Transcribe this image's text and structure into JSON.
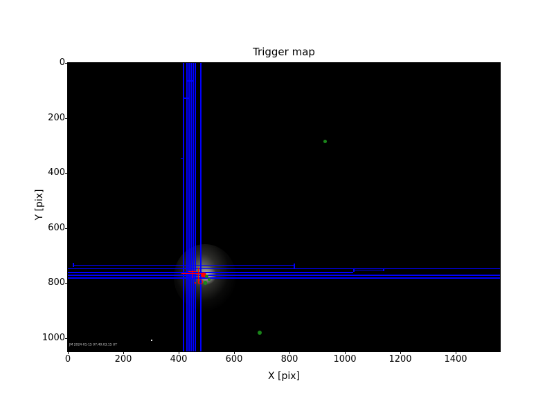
{
  "chart_data": {
    "type": "scatter",
    "title": "Trigger map",
    "xlabel": "X [pix]",
    "ylabel": "Y [pix]",
    "xlim": [
      0,
      1560
    ],
    "ylim": [
      1049,
      0
    ],
    "y_axis_inverted": true,
    "grid": false,
    "legend": null,
    "x_ticks": [
      0,
      200,
      400,
      600,
      800,
      1000,
      1200,
      1400
    ],
    "y_ticks": [
      0,
      200,
      400,
      600,
      800,
      1000
    ],
    "plot_background": "#000000",
    "figure_background": "#ffffff",
    "colors": {
      "trigger_box": "#0000ff",
      "crosshair": "#ff0000",
      "detection_dot": "#ff0000",
      "star_dot": "#1a851a",
      "watermark": "#cfcfcf"
    },
    "trigger_boxes": {
      "vertical_lines": [
        {
          "x": 415,
          "y1": 0,
          "y2": 1049
        },
        {
          "x": 428,
          "y1": 0,
          "y2": 1049
        },
        {
          "x": 435,
          "y1": 0,
          "y2": 1049
        },
        {
          "x": 443,
          "y1": 0,
          "y2": 1049
        },
        {
          "x": 450,
          "y1": 0,
          "y2": 1049
        },
        {
          "x": 458,
          "y1": 0,
          "y2": 1049
        },
        {
          "x": 478,
          "y1": 0,
          "y2": 1049
        }
      ],
      "horizontal_lines": [
        {
          "y": 734,
          "x1": 18,
          "x2": 815
        },
        {
          "y": 747,
          "x1": 0,
          "x2": 1560
        },
        {
          "y": 752,
          "x1": 1030,
          "x2": 1138
        },
        {
          "y": 760,
          "x1": 0,
          "x2": 1030
        },
        {
          "y": 770,
          "x1": 0,
          "x2": 1560
        },
        {
          "y": 780,
          "x1": 0,
          "x2": 1560
        }
      ],
      "connector_segments_h": [
        {
          "y": 63,
          "x1": 428,
          "x2": 451
        },
        {
          "y": 126,
          "x1": 415,
          "x2": 436
        },
        {
          "y": 347,
          "x1": 408,
          "x2": 419
        }
      ],
      "connector_segments_v": [
        {
          "x": 18,
          "y1": 727,
          "y2": 741
        },
        {
          "x": 815,
          "y1": 730,
          "y2": 747
        },
        {
          "x": 1030,
          "y1": 747,
          "y2": 760
        },
        {
          "x": 1138,
          "y1": 747,
          "y2": 757
        }
      ]
    },
    "crosshairs": [
      {
        "h": {
          "y": 765,
          "x1": 410,
          "x2": 493
        },
        "v": {
          "x": 470,
          "y1": 745,
          "y2": 803
        }
      },
      {
        "h": {
          "y": 757,
          "x1": 435,
          "x2": 462
        },
        "v": {
          "x": 448,
          "y1": 752,
          "y2": 782
        }
      }
    ],
    "detections": {
      "red_dots": [
        {
          "x": 490,
          "y": 772,
          "d": 18
        }
      ],
      "red_rings": [
        {
          "x": 478,
          "y": 797,
          "d": 17
        }
      ],
      "red_specks": [
        {
          "x": 460,
          "y": 800,
          "d": 6
        }
      ]
    },
    "stars": [
      {
        "x": 502,
        "y": 777,
        "d": 12
      },
      {
        "x": 497,
        "y": 800,
        "d": 13
      },
      {
        "x": 510,
        "y": 787,
        "d": 9
      },
      {
        "x": 928,
        "y": 285,
        "d": 13
      },
      {
        "x": 693,
        "y": 981,
        "d": 15
      }
    ],
    "glow_center": {
      "x": 495,
      "y": 780
    },
    "white_specks": [
      {
        "x": 300,
        "y": 1006
      }
    ],
    "watermark": "JM 2024-01-15 07:40:03.15 UT"
  }
}
